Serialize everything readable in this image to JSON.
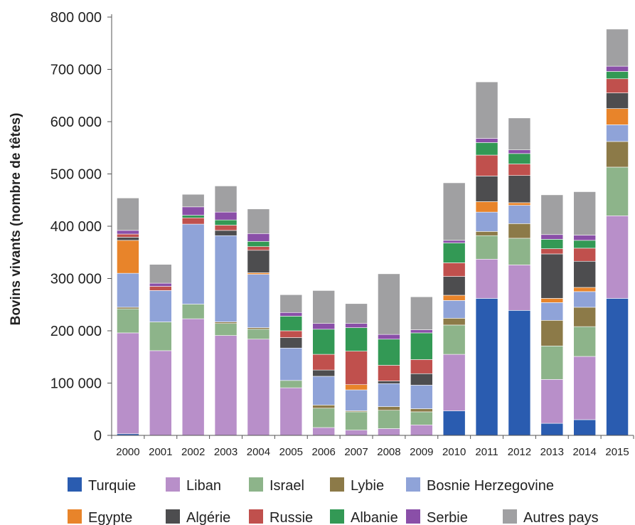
{
  "chart_data": {
    "type": "bar",
    "stacked": true,
    "title": "",
    "xlabel": "",
    "ylabel": "Bovins vivants (nombre de têtes)",
    "ylim": [
      0,
      800000
    ],
    "yticks": [
      "0",
      "100 000",
      "200 000",
      "300 000",
      "400 000",
      "500 000",
      "600 000",
      "700 000",
      "800 000"
    ],
    "grid": false,
    "legend_position": "bottom",
    "categories": [
      "2000",
      "2001",
      "2002",
      "2003",
      "2004",
      "2005",
      "2006",
      "2007",
      "2008",
      "2009",
      "2010",
      "2011",
      "2012",
      "2013",
      "2014",
      "2015"
    ],
    "series": [
      {
        "name": "Turquie",
        "color": "#2a5cb0",
        "values": [
          3000,
          0,
          0,
          0,
          0,
          0,
          0,
          0,
          0,
          0,
          47000,
          262000,
          239000,
          23000,
          30000,
          262000
        ]
      },
      {
        "name": "Liban",
        "color": "#b88fc9",
        "values": [
          193000,
          162000,
          223000,
          191000,
          184000,
          91000,
          15000,
          10000,
          13000,
          20000,
          108000,
          75000,
          87000,
          84000,
          121000,
          158000
        ]
      },
      {
        "name": "Israel",
        "color": "#8db48a",
        "values": [
          46000,
          55000,
          28000,
          23000,
          19000,
          14000,
          37000,
          35000,
          35000,
          25000,
          56000,
          45000,
          51000,
          64000,
          57000,
          93000
        ]
      },
      {
        "name": "Lybie",
        "color": "#8c7a48",
        "values": [
          3000,
          0,
          0,
          3000,
          3000,
          0,
          6000,
          2000,
          7000,
          6000,
          13000,
          8000,
          28000,
          49000,
          37000,
          49000
        ]
      },
      {
        "name": "Bosnie Herzegovine",
        "color": "#8fa3d8",
        "values": [
          65000,
          60000,
          153000,
          165000,
          102000,
          62000,
          55000,
          40000,
          44000,
          45000,
          34000,
          37000,
          35000,
          34000,
          30000,
          32000
        ]
      },
      {
        "name": "Egypte",
        "color": "#e8842a",
        "values": [
          63000,
          0,
          0,
          0,
          3000,
          0,
          0,
          10000,
          0,
          0,
          10000,
          20000,
          5000,
          8000,
          8000,
          31000
        ]
      },
      {
        "name": "Algérie",
        "color": "#4d4d4f",
        "values": [
          6000,
          0,
          0,
          10000,
          43000,
          20000,
          12000,
          0,
          5000,
          22000,
          36000,
          49000,
          52000,
          85000,
          50000,
          30000
        ]
      },
      {
        "name": "Russie",
        "color": "#c0504d",
        "values": [
          6000,
          8000,
          12000,
          10000,
          7000,
          13000,
          30000,
          64000,
          30000,
          27000,
          26000,
          40000,
          22000,
          10000,
          25000,
          27000
        ]
      },
      {
        "name": "Albanie",
        "color": "#339955",
        "values": [
          0,
          0,
          5000,
          10000,
          10000,
          28000,
          48000,
          45000,
          50000,
          51000,
          38000,
          24000,
          20000,
          18000,
          15000,
          14000
        ]
      },
      {
        "name": "Serbie",
        "color": "#8a4fa8",
        "values": [
          7000,
          6000,
          16000,
          15000,
          15000,
          7000,
          11000,
          8000,
          9000,
          6000,
          5000,
          8000,
          7000,
          9000,
          10000,
          10000
        ]
      },
      {
        "name": "Autres pays",
        "color": "#a0a0a2",
        "values": [
          62000,
          36000,
          24000,
          50000,
          47000,
          34000,
          63000,
          38000,
          116000,
          63000,
          110000,
          108000,
          61000,
          76000,
          83000,
          71000
        ]
      }
    ]
  }
}
